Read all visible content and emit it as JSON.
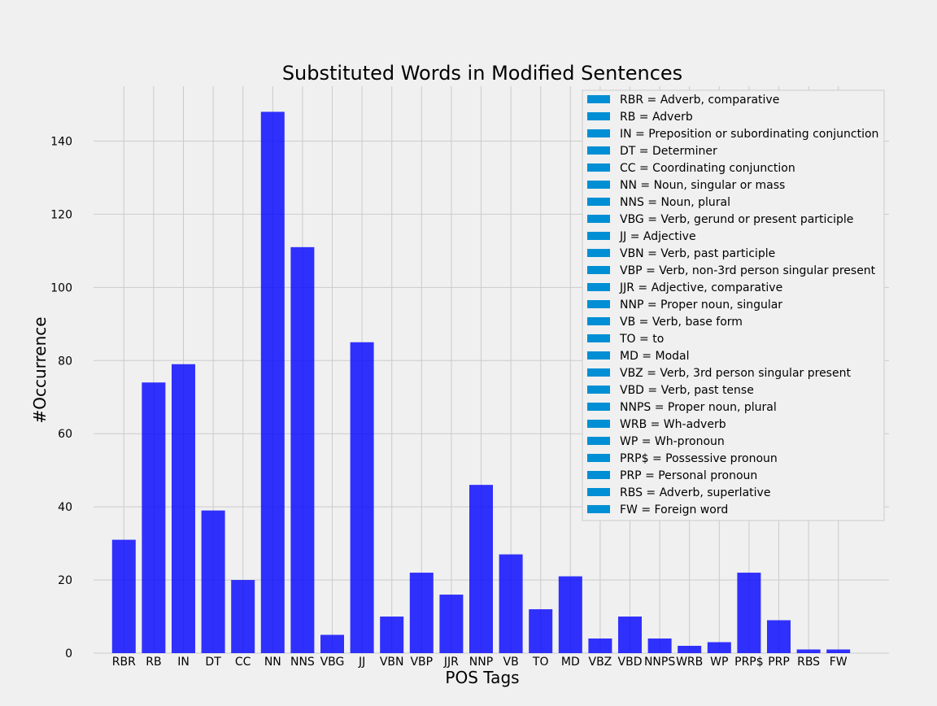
{
  "chart_data": {
    "type": "bar",
    "title": "Substituted Words in Modified Sentences",
    "xlabel": "POS Tags",
    "ylabel": "#Occurrence",
    "ylim": [
      0,
      155
    ],
    "yticks": [
      0,
      20,
      40,
      60,
      80,
      100,
      120,
      140
    ],
    "grid": true,
    "bar_color": "#0000ff",
    "legend_color": "#008fd5",
    "background": "#f0f0f0",
    "legend_position": "top-right",
    "categories": [
      "RBR",
      "RB",
      "IN",
      "DT",
      "CC",
      "NN",
      "NNS",
      "VBG",
      "JJ",
      "VBN",
      "VBP",
      "JJR",
      "NNP",
      "VB",
      "TO",
      "MD",
      "VBZ",
      "VBD",
      "NNPS",
      "WRB",
      "WP",
      "PRP$",
      "PRP",
      "RBS",
      "FW"
    ],
    "values": [
      31,
      74,
      79,
      39,
      20,
      148,
      111,
      5,
      85,
      10,
      22,
      16,
      46,
      27,
      12,
      21,
      4,
      10,
      4,
      2,
      3,
      22,
      9,
      1,
      1
    ],
    "legend": [
      "RBR = Adverb, comparative",
      "RB = Adverb",
      "IN = Preposition or subordinating conjunction",
      "DT = Determiner",
      "CC = Coordinating conjunction",
      "NN = Noun, singular or mass",
      "NNS = Noun, plural",
      "VBG = Verb, gerund or present participle",
      "JJ = Adjective",
      "VBN = Verb, past participle",
      "VBP = Verb, non-3rd person singular present",
      "JJR = Adjective, comparative",
      "NNP = Proper noun, singular",
      "VB = Verb, base form",
      "TO = to",
      "MD = Modal",
      "VBZ = Verb, 3rd person singular present",
      "VBD = Verb, past tense",
      "NNPS = Proper noun, plural",
      "WRB = Wh-adverb",
      "WP = Wh-pronoun",
      "PRP$ = Possessive pronoun",
      "PRP = Personal pronoun",
      "RBS = Adverb, superlative",
      "FW = Foreign word"
    ]
  }
}
